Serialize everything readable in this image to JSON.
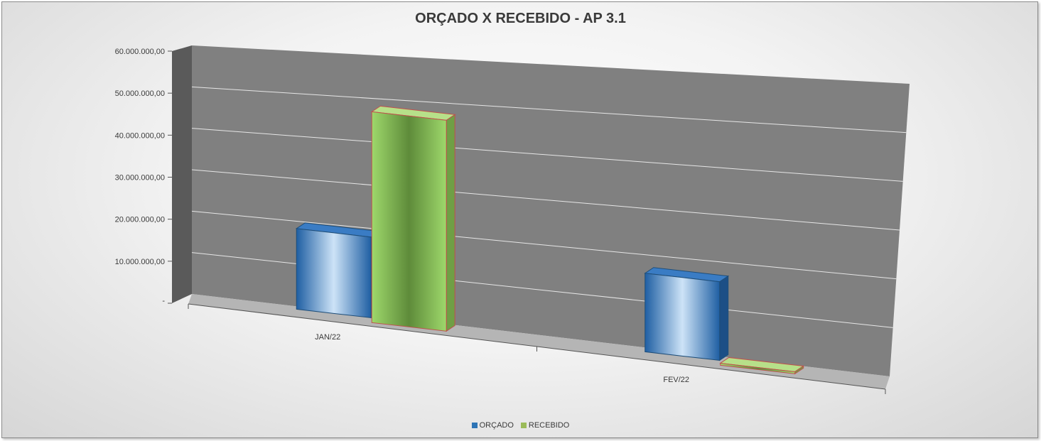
{
  "chart_data": {
    "type": "bar",
    "title": "ORÇADO X RECEBIDO - AP 3.1",
    "categories": [
      "JAN/22",
      "FEV/22"
    ],
    "series": [
      {
        "name": "ORÇADO",
        "values": [
          19500000,
          19000000
        ]
      },
      {
        "name": "RECEBIDO",
        "values": [
          51000000,
          500000
        ]
      }
    ],
    "ylim": [
      0,
      60000000
    ],
    "yticks": [
      0,
      10000000,
      20000000,
      30000000,
      40000000,
      50000000,
      60000000
    ],
    "ytick_labels": [
      "-",
      "10.000.000,00",
      "20.000.000,00",
      "30.000.000,00",
      "40.000.000,00",
      "50.000.000,00",
      "60.000.000,00"
    ],
    "grid": true,
    "legend": "bottom",
    "colors": {
      "ORÇADO": "#2e75b6",
      "RECEBIDO": "#92d050",
      "RECEBIDO_edge": "#c0504d",
      "wall": "#808080",
      "floor": "#b5b5b5",
      "side_wall": "#5a5a5a"
    }
  },
  "legend_items": [
    {
      "label": "ORÇADO",
      "color": "#2e75b6"
    },
    {
      "label": "RECEBIDO",
      "color": "#9bbb59"
    }
  ]
}
